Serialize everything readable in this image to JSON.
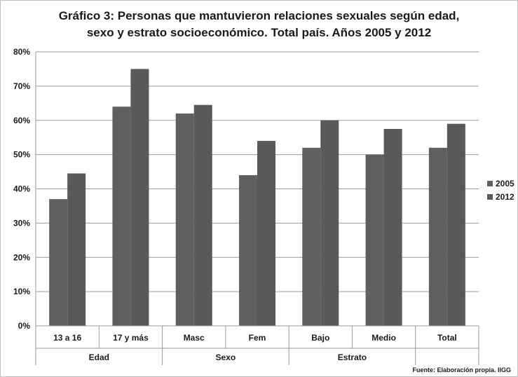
{
  "chart_data": {
    "type": "bar",
    "title_lines": [
      "Gráfico 3: Personas que mantuvieron relaciones sexuales según edad,",
      "sexo y estrato socioeconómico. Total país. Años 2005 y 2012"
    ],
    "categories": [
      "13 a 16",
      "17 y más",
      "Masc",
      "Fem",
      "Bajo",
      "Medio",
      "Total"
    ],
    "groups": [
      {
        "label": "Edad",
        "span": [
          0,
          1
        ]
      },
      {
        "label": "Sexo",
        "span": [
          2,
          3
        ]
      },
      {
        "label": "Estrato",
        "span": [
          4,
          5
        ]
      },
      {
        "label": "",
        "span": [
          6,
          6
        ]
      }
    ],
    "series": [
      {
        "name": "2005",
        "values": [
          37,
          64,
          62,
          44,
          52,
          50,
          52
        ],
        "color": "#5f5f5f"
      },
      {
        "name": "2012",
        "values": [
          44.5,
          75,
          64.5,
          54,
          60,
          57.5,
          59
        ],
        "color": "#595959"
      }
    ],
    "yticks": [
      "0%",
      "10%",
      "20%",
      "30%",
      "40%",
      "50%",
      "60%",
      "70%",
      "80%"
    ],
    "ylim": [
      0,
      80
    ],
    "legend": "right",
    "grid": true,
    "source": "Fuente: Elaboración propia. IIGG"
  }
}
